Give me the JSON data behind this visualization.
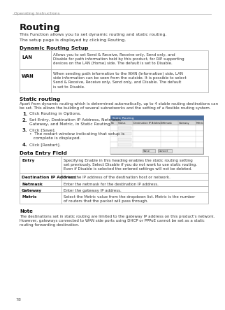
{
  "bg_color": "#ffffff",
  "header_text": "Operating Instructions",
  "title": "Routing",
  "intro1": "This Function allows you to set dynamic routing and static routing.",
  "intro2": "The setup page is displayed by clicking Routing.",
  "section1_title": "Dynamic Routing Setup",
  "table1_rows": [
    [
      "LAN",
      "Allows you to set Send & Receive, Receive only, Send only, and\nDisable for path information held by this product, for RIP supporting\ndevices on the LAN (Home) side. The default is set to Disable."
    ],
    [
      "WAN",
      "When sending path information to the WAN (Information) side, LAN\nside information can be seen from the outside. It is possible to select\nSend & Receive, Receive only, Send only, and Disable. The default\nis set to Disable."
    ]
  ],
  "section2_title": "Static routing",
  "section2_body": "Apart from dynamic routing which is determined automatically, up to 4 stable routing destinations can\nbe set. This allows the building of several subnetworks and the setting of a flexible routing system.",
  "step1": "Click Routing in Options.",
  "step2a": "Set Entry, Destination IP Address, Netmask,",
  "step2b": "Gateway, and Metric, in Static Routing.",
  "step3a": "Click [Save].",
  "step3b": "•  The restart window indicating that setup is",
  "step3c": "   complete is displayed.",
  "step4": "Click [Restart].",
  "section3_title": "Data Entry Field",
  "table2_rows": [
    [
      "Entry",
      "Specifying Enable in this heading enables the static routing setting\nset previously. Select Disable if you do not want to use static routing.\nEven if Disable is selected the entered settings will not be deleted."
    ],
    [
      "Destination IP Address",
      "Enter the IP address of the destination host or network."
    ],
    [
      "Netmask",
      "Enter the netmask for the destination IP address."
    ],
    [
      "Gateway",
      "Enter the gateway IP address."
    ],
    [
      "Metric",
      "Select the Metric value from the dropdown list. Metric is the number\nof routers that the packet will pass through."
    ]
  ],
  "note_title": "Note",
  "note_body": "The destinations set in static routing are limited to the gateway IP address on this product's network.\nHowever, gateways connected to WAN side ports using DHCP or PPPoE cannot be set as a static\nrouting forwarding destination.",
  "page_number": "78",
  "screenshot_title": "Static Routing",
  "screenshot_cols": [
    "No",
    "Status",
    "Destination IP Address",
    "Netmask",
    "Gateway",
    "Metric"
  ],
  "screenshot_btn1": "Save",
  "screenshot_btn2": "Cancel"
}
